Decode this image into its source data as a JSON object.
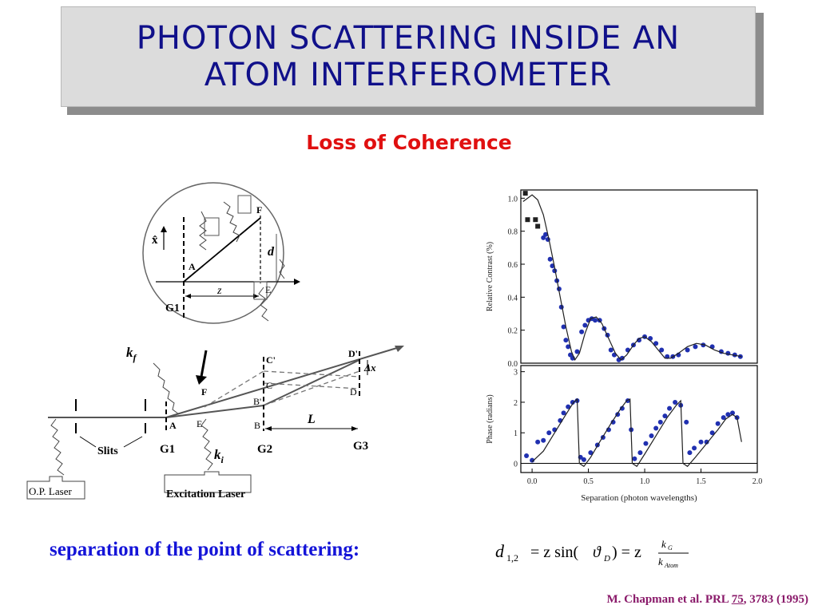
{
  "slide": {
    "title_line1": "PHOTON  SCATTERING  INSIDE AN",
    "title_line2": "ATOM  INTERFEROMETER",
    "subtitle": "Loss of Coherence",
    "bottom_label": "separation of the point of scattering:",
    "citation_prefix": "M. Chapman et al.   PRL ",
    "citation_volume": "75",
    "citation_suffix": ",  3783  (1995)"
  },
  "diagram": {
    "labels": {
      "x_hat": "x̂",
      "A": "A",
      "F": "F",
      "E": "E",
      "d": "d",
      "z": "z",
      "G1": "G1",
      "kf": "k",
      "kf_sub": "f",
      "ki": "k",
      "ki_sub": "i",
      "F_main": "F",
      "A_main": "A",
      "E_main": "E",
      "C_prime": "C'",
      "C": "C",
      "B_prime": "B'",
      "B": "B",
      "D_prime": "D'",
      "D": "D",
      "delta_x": "Δx",
      "L": "L",
      "slits": "Slits",
      "G1_main": "G1",
      "G2": "G2",
      "G3": "G3",
      "op_laser": "O.P. Laser",
      "excitation_laser": "Excitation Laser"
    }
  },
  "formula": {
    "d": "d",
    "d_sub": "1,2",
    "eq1": "= z sin(",
    "theta": "ϑ",
    "theta_sub": "D",
    "eq2": ") = z",
    "num": "k",
    "num_sub": "G",
    "den": "k",
    "den_sub": "Atom"
  },
  "chart_data": [
    {
      "type": "scatter",
      "ylabel": "Relative Contrast (%)",
      "y_ticks": [
        "1.0",
        "0.8",
        "0.6",
        "0.4",
        "0.2",
        "0.0"
      ],
      "ylim": [
        0,
        1.05
      ],
      "xlim": [
        -0.1,
        2.0
      ],
      "grid": false,
      "series": [
        {
          "marker": "square",
          "color": "#202020",
          "points": [
            [
              -0.06,
              1.03
            ],
            [
              -0.04,
              0.87
            ],
            [
              0.03,
              0.87
            ],
            [
              0.05,
              0.83
            ]
          ]
        },
        {
          "marker": "circle",
          "color": "#2030b0",
          "points": [
            [
              0.1,
              0.76
            ],
            [
              0.12,
              0.78
            ],
            [
              0.14,
              0.75
            ],
            [
              0.16,
              0.63
            ],
            [
              0.18,
              0.59
            ],
            [
              0.2,
              0.56
            ],
            [
              0.22,
              0.5
            ],
            [
              0.24,
              0.45
            ],
            [
              0.26,
              0.34
            ],
            [
              0.28,
              0.22
            ],
            [
              0.3,
              0.14
            ],
            [
              0.32,
              0.1
            ],
            [
              0.34,
              0.05
            ],
            [
              0.36,
              0.03
            ],
            [
              0.4,
              0.07
            ],
            [
              0.44,
              0.19
            ],
            [
              0.47,
              0.23
            ],
            [
              0.5,
              0.26
            ],
            [
              0.53,
              0.27
            ],
            [
              0.56,
              0.26
            ],
            [
              0.6,
              0.26
            ],
            [
              0.64,
              0.21
            ],
            [
              0.67,
              0.17
            ],
            [
              0.7,
              0.08
            ],
            [
              0.73,
              0.05
            ],
            [
              0.77,
              0.02
            ],
            [
              0.8,
              0.03
            ],
            [
              0.85,
              0.08
            ],
            [
              0.9,
              0.11
            ],
            [
              0.95,
              0.14
            ],
            [
              1.0,
              0.16
            ],
            [
              1.05,
              0.15
            ],
            [
              1.1,
              0.12
            ],
            [
              1.15,
              0.08
            ],
            [
              1.2,
              0.04
            ],
            [
              1.25,
              0.04
            ],
            [
              1.3,
              0.05
            ],
            [
              1.38,
              0.08
            ],
            [
              1.45,
              0.1
            ],
            [
              1.52,
              0.11
            ],
            [
              1.6,
              0.1
            ],
            [
              1.68,
              0.07
            ],
            [
              1.74,
              0.06
            ],
            [
              1.8,
              0.05
            ],
            [
              1.85,
              0.04
            ]
          ]
        },
        {
          "type": "line",
          "color": "#202020",
          "points": [
            [
              -0.08,
              0.98
            ],
            [
              0.0,
              1.02
            ],
            [
              0.05,
              0.99
            ],
            [
              0.1,
              0.9
            ],
            [
              0.15,
              0.75
            ],
            [
              0.2,
              0.58
            ],
            [
              0.25,
              0.4
            ],
            [
              0.3,
              0.22
            ],
            [
              0.35,
              0.07
            ],
            [
              0.38,
              0.02
            ],
            [
              0.42,
              0.06
            ],
            [
              0.47,
              0.18
            ],
            [
              0.52,
              0.27
            ],
            [
              0.57,
              0.28
            ],
            [
              0.62,
              0.24
            ],
            [
              0.68,
              0.15
            ],
            [
              0.74,
              0.06
            ],
            [
              0.79,
              0.02
            ],
            [
              0.84,
              0.05
            ],
            [
              0.9,
              0.11
            ],
            [
              0.95,
              0.15
            ],
            [
              1.0,
              0.16
            ],
            [
              1.06,
              0.13
            ],
            [
              1.12,
              0.08
            ],
            [
              1.18,
              0.03
            ],
            [
              1.23,
              0.03
            ],
            [
              1.3,
              0.06
            ],
            [
              1.38,
              0.1
            ],
            [
              1.46,
              0.12
            ],
            [
              1.54,
              0.11
            ],
            [
              1.62,
              0.08
            ],
            [
              1.7,
              0.06
            ],
            [
              1.78,
              0.05
            ],
            [
              1.86,
              0.04
            ]
          ]
        }
      ]
    },
    {
      "type": "scatter",
      "ylabel": "Phase (radians)",
      "xlabel": "Separation (photon wavelengths)",
      "y_ticks": [
        "3",
        "2",
        "1",
        "0"
      ],
      "x_ticks": [
        "0.0",
        "0.5",
        "1.0",
        "1.5",
        "2.0"
      ],
      "ylim": [
        -0.3,
        3.2
      ],
      "xlim": [
        -0.1,
        2.0
      ],
      "grid": false,
      "series": [
        {
          "marker": "circle",
          "color": "#2030b0",
          "points": [
            [
              -0.05,
              0.25
            ],
            [
              0.0,
              0.1
            ],
            [
              0.05,
              0.7
            ],
            [
              0.1,
              0.75
            ],
            [
              0.15,
              1.0
            ],
            [
              0.2,
              1.1
            ],
            [
              0.25,
              1.4
            ],
            [
              0.28,
              1.65
            ],
            [
              0.32,
              1.85
            ],
            [
              0.36,
              2.0
            ],
            [
              0.4,
              2.05
            ],
            [
              0.43,
              0.2
            ],
            [
              0.46,
              0.12
            ],
            [
              0.52,
              0.35
            ],
            [
              0.58,
              0.6
            ],
            [
              0.63,
              0.85
            ],
            [
              0.68,
              1.1
            ],
            [
              0.72,
              1.35
            ],
            [
              0.76,
              1.6
            ],
            [
              0.8,
              1.8
            ],
            [
              0.85,
              2.05
            ],
            [
              0.88,
              1.1
            ],
            [
              0.91,
              0.15
            ],
            [
              0.96,
              0.35
            ],
            [
              1.01,
              0.65
            ],
            [
              1.06,
              0.9
            ],
            [
              1.1,
              1.15
            ],
            [
              1.14,
              1.35
            ],
            [
              1.18,
              1.55
            ],
            [
              1.22,
              1.8
            ],
            [
              1.27,
              2.0
            ],
            [
              1.32,
              1.9
            ],
            [
              1.37,
              1.35
            ],
            [
              1.4,
              0.35
            ],
            [
              1.44,
              0.5
            ],
            [
              1.5,
              0.7
            ],
            [
              1.55,
              0.7
            ],
            [
              1.6,
              1.0
            ],
            [
              1.65,
              1.3
            ],
            [
              1.7,
              1.5
            ],
            [
              1.74,
              1.6
            ],
            [
              1.78,
              1.65
            ],
            [
              1.82,
              1.5
            ]
          ]
        },
        {
          "type": "line",
          "color": "#202020",
          "points": [
            [
              0.0,
              0.05
            ],
            [
              0.1,
              0.4
            ],
            [
              0.2,
              1.0
            ],
            [
              0.3,
              1.6
            ],
            [
              0.37,
              2.0
            ],
            [
              0.4,
              2.1
            ],
            [
              0.42,
              0.0
            ],
            [
              0.46,
              -0.1
            ],
            [
              0.52,
              0.2
            ],
            [
              0.6,
              0.7
            ],
            [
              0.7,
              1.3
            ],
            [
              0.78,
              1.75
            ],
            [
              0.84,
              2.05
            ],
            [
              0.87,
              2.1
            ],
            [
              0.89,
              0.0
            ],
            [
              0.93,
              -0.1
            ],
            [
              1.0,
              0.3
            ],
            [
              1.1,
              0.9
            ],
            [
              1.2,
              1.5
            ],
            [
              1.28,
              1.9
            ],
            [
              1.32,
              2.05
            ],
            [
              1.34,
              0.0
            ],
            [
              1.38,
              -0.1
            ],
            [
              1.45,
              0.2
            ],
            [
              1.55,
              0.65
            ],
            [
              1.65,
              1.1
            ],
            [
              1.72,
              1.45
            ],
            [
              1.78,
              1.6
            ],
            [
              1.82,
              1.5
            ],
            [
              1.86,
              0.7
            ]
          ]
        }
      ]
    }
  ]
}
